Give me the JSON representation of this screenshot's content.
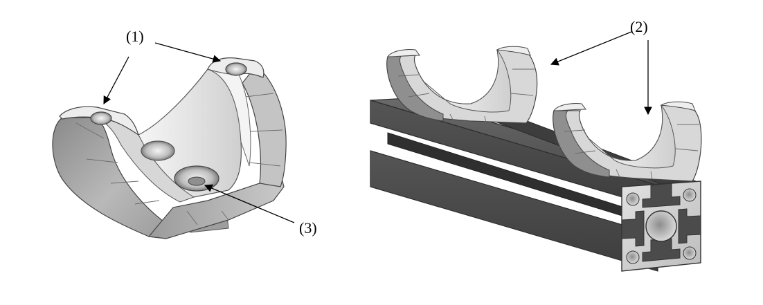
{
  "figure": {
    "callouts": [
      {
        "id": "callout-1",
        "text": "(1)"
      },
      {
        "id": "callout-2",
        "text": "(2)"
      },
      {
        "id": "callout-3",
        "text": "(3)"
      }
    ]
  },
  "colors": {
    "background": "#ffffff",
    "metal_light": "#ececec",
    "metal_mid": "#b5b5b5",
    "metal_dark": "#6e6e6e",
    "extrusion_dark": "#4a4a4a",
    "arrow": "#000000"
  }
}
